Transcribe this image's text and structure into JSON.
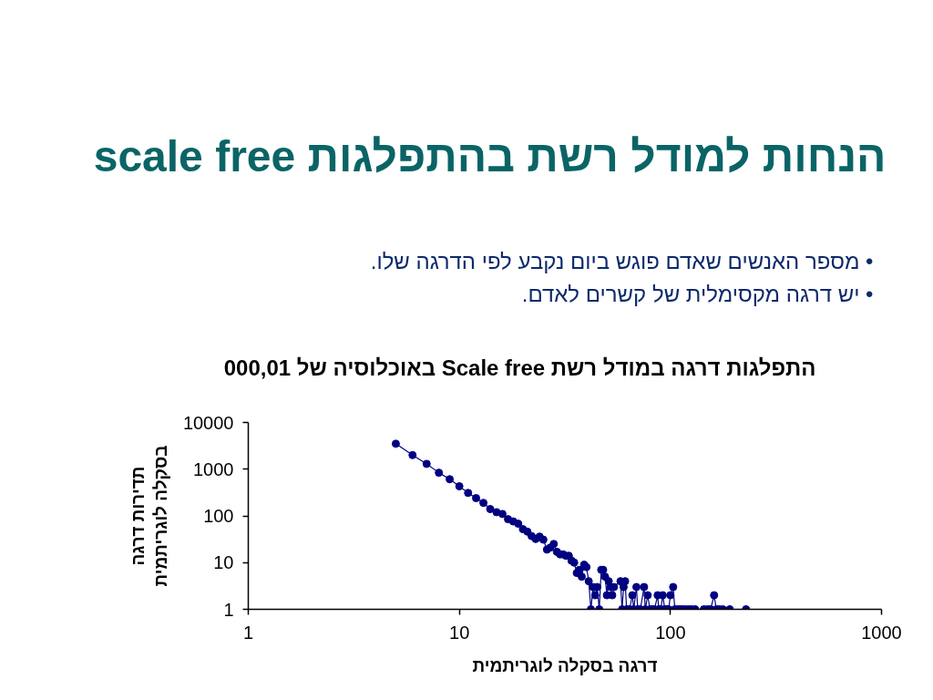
{
  "chart_data": {
    "type": "line",
    "title": "הנחות למודל רשת בהתפלגות scale free",
    "subtitle": "התפלגות דרגה במודל רשת Scale free באוכלוסיה של 000,01",
    "annotations": [
      "• מספר האנשים שאדם פוגש ביום נקבע לפי הדרגה שלו.",
      "• יש דרגה מקסימלית של קשרים לאדם."
    ],
    "xlabel": "דרגה בסקלה לוגריתמית",
    "ylabel": "תדירות דרגה\nבסקלה לוגריתמית",
    "x": [
      5,
      6,
      7,
      8,
      9,
      10,
      11,
      12,
      13,
      14,
      15,
      16,
      17,
      18,
      19,
      20,
      21,
      22,
      23,
      24,
      25,
      26,
      27,
      28,
      29,
      30,
      31,
      32,
      33,
      34,
      35,
      36,
      37,
      38,
      39,
      40,
      41,
      42,
      43,
      44,
      45,
      46,
      47,
      48,
      49,
      50,
      51,
      52,
      53,
      54,
      58,
      59,
      60,
      61,
      62,
      64,
      66,
      67,
      69,
      70,
      72,
      75,
      76,
      78,
      80,
      82,
      84,
      87,
      88,
      90,
      92,
      94,
      96,
      98,
      100,
      103,
      105,
      108,
      111,
      114,
      118,
      122,
      126,
      131,
      144,
      150,
      155,
      161,
      165,
      170,
      177,
      191,
      228
    ],
    "series": [
      {
        "color": "#000080",
        "values": [
          3500,
          2000,
          1300,
          840,
          610,
          430,
          310,
          240,
          190,
          140,
          120,
          110,
          85,
          76,
          68,
          52,
          46,
          37,
          32,
          36,
          31,
          19,
          21,
          25,
          17,
          15,
          15,
          14,
          14,
          11,
          10,
          6,
          7,
          5,
          9,
          8,
          4,
          1,
          3,
          2,
          3,
          1,
          7,
          7,
          5,
          2,
          4,
          3,
          2,
          3,
          4,
          1,
          3,
          4,
          1,
          1,
          2,
          1,
          3,
          1,
          1,
          3,
          1,
          2,
          1,
          1,
          1,
          2,
          1,
          1,
          2,
          1,
          1,
          1,
          2,
          3,
          1,
          1,
          1,
          1,
          1,
          1,
          1,
          1,
          1,
          1,
          1,
          2,
          1,
          1,
          1,
          1,
          1
        ]
      }
    ],
    "log": "xy",
    "xlim": [
      1,
      1000
    ],
    "ylim": [
      1,
      10000
    ],
    "xticks": [
      1,
      10,
      100,
      1000
    ],
    "yticks": [
      1,
      10,
      100,
      1000,
      10000
    ],
    "grid": false,
    "marker": "circle",
    "line_style": "solid"
  }
}
